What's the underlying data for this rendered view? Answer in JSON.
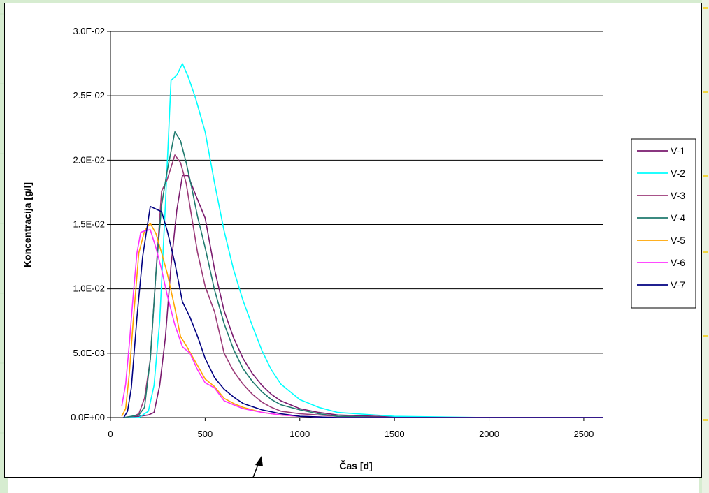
{
  "chart_data": {
    "type": "line",
    "title": "",
    "xlabel": "Čas [d]",
    "ylabel": "Koncentracija [g/l]",
    "xlim": [
      0,
      2600
    ],
    "ylim": [
      0,
      0.03
    ],
    "x_ticks": [
      0,
      500,
      1000,
      1500,
      2000,
      2500
    ],
    "x_tick_labels": [
      "0",
      "500",
      "1000",
      "1500",
      "2000",
      "2500"
    ],
    "y_ticks": [
      0,
      0.005,
      0.01,
      0.015,
      0.02,
      0.025,
      0.03
    ],
    "y_tick_labels": [
      "0.0E+00",
      "5.0E-03",
      "1.0E-02",
      "1.5E-02",
      "2.0E-02",
      "2.5E-02",
      "3.0E-02"
    ],
    "grid": "horizontal",
    "legend_position": "right",
    "series": [
      {
        "name": "V-1",
        "color": "#7a1a6e",
        "x": [
          70,
          150,
          200,
          230,
          260,
          290,
          320,
          350,
          380,
          410,
          450,
          500,
          550,
          600,
          650,
          700,
          750,
          800,
          850,
          900,
          1000,
          1100,
          1200,
          1400,
          1600,
          2000,
          2600
        ],
        "y": [
          0,
          0.0001,
          0.0002,
          0.0004,
          0.0025,
          0.0062,
          0.0118,
          0.0161,
          0.0188,
          0.0188,
          0.0173,
          0.0155,
          0.0115,
          0.0083,
          0.0062,
          0.0046,
          0.0034,
          0.0025,
          0.0018,
          0.0013,
          0.0007,
          0.0004,
          0.0002,
          0.0001,
          0,
          0,
          0
        ]
      },
      {
        "name": "V-2",
        "color": "#00ffff",
        "x": [
          70,
          150,
          200,
          230,
          260,
          290,
          320,
          350,
          380,
          410,
          450,
          500,
          550,
          600,
          650,
          700,
          750,
          800,
          850,
          900,
          1000,
          1100,
          1200,
          1300,
          1500,
          2000,
          2600
        ],
        "y": [
          0,
          0,
          0.0005,
          0.0025,
          0.0075,
          0.0165,
          0.0262,
          0.0266,
          0.0275,
          0.0265,
          0.0248,
          0.0222,
          0.0182,
          0.0145,
          0.0115,
          0.0091,
          0.0071,
          0.0052,
          0.0037,
          0.0026,
          0.0014,
          0.0008,
          0.0004,
          0.0003,
          0.0001,
          0,
          0
        ]
      },
      {
        "name": "V-3",
        "color": "#9b3a78",
        "x": [
          70,
          120,
          150,
          180,
          210,
          240,
          270,
          300,
          340,
          370,
          400,
          430,
          460,
          500,
          550,
          600,
          650,
          700,
          750,
          800,
          850,
          900,
          1000,
          1100,
          1200,
          1500,
          2600
        ],
        "y": [
          0,
          0.0001,
          0.0003,
          0.0015,
          0.0045,
          0.0112,
          0.0176,
          0.0185,
          0.0204,
          0.0198,
          0.0182,
          0.0155,
          0.0128,
          0.0102,
          0.0082,
          0.005,
          0.0036,
          0.0026,
          0.0018,
          0.0012,
          0.0008,
          0.0005,
          0.0003,
          0.0002,
          0.0001,
          0,
          0
        ]
      },
      {
        "name": "V-4",
        "color": "#1f7a6e",
        "x": [
          70,
          150,
          180,
          210,
          240,
          270,
          300,
          340,
          370,
          400,
          430,
          460,
          500,
          550,
          600,
          650,
          700,
          750,
          800,
          850,
          900,
          1000,
          1100,
          1200,
          1500,
          2600
        ],
        "y": [
          0,
          0.0002,
          0.0008,
          0.0045,
          0.0112,
          0.0165,
          0.0192,
          0.0222,
          0.0215,
          0.0198,
          0.0178,
          0.0156,
          0.0132,
          0.0099,
          0.0073,
          0.0053,
          0.0038,
          0.0028,
          0.002,
          0.0014,
          0.001,
          0.0006,
          0.0003,
          0.0001,
          0,
          0
        ]
      },
      {
        "name": "V-5",
        "color": "#ffa500",
        "x": [
          60,
          80,
          100,
          120,
          150,
          180,
          210,
          240,
          270,
          300,
          340,
          370,
          400,
          450,
          500,
          550,
          600,
          650,
          700,
          750,
          800,
          900,
          1000,
          1200,
          1500,
          2600
        ],
        "y": [
          0.0001,
          0.0007,
          0.0035,
          0.0075,
          0.0128,
          0.0145,
          0.0151,
          0.0143,
          0.0128,
          0.0112,
          0.0085,
          0.0063,
          0.0056,
          0.0043,
          0.003,
          0.0024,
          0.0015,
          0.0011,
          0.0008,
          0.0006,
          0.0004,
          0.0002,
          0.0001,
          0,
          0,
          0
        ]
      },
      {
        "name": "V-6",
        "color": "#ff30ff",
        "x": [
          60,
          80,
          100,
          120,
          140,
          160,
          180,
          210,
          240,
          270,
          300,
          340,
          380,
          420,
          460,
          500,
          550,
          600,
          650,
          700,
          800,
          900,
          1000,
          1200,
          1500,
          2600
        ],
        "y": [
          0.0009,
          0.0026,
          0.0058,
          0.0095,
          0.0128,
          0.0144,
          0.0145,
          0.0146,
          0.0132,
          0.0115,
          0.0095,
          0.0072,
          0.0055,
          0.005,
          0.0037,
          0.0027,
          0.0023,
          0.0013,
          0.001,
          0.0007,
          0.0004,
          0.0002,
          0.0001,
          0,
          0,
          0
        ]
      },
      {
        "name": "V-7",
        "color": "#000080",
        "x": [
          70,
          90,
          110,
          140,
          170,
          210,
          240,
          270,
          300,
          340,
          380,
          420,
          460,
          500,
          550,
          600,
          650,
          700,
          800,
          900,
          1000,
          1200,
          1500,
          2600
        ],
        "y": [
          0,
          0.0005,
          0.0023,
          0.0078,
          0.0125,
          0.0164,
          0.0162,
          0.016,
          0.0145,
          0.012,
          0.009,
          0.0078,
          0.0063,
          0.0046,
          0.0031,
          0.0022,
          0.0016,
          0.0011,
          0.0006,
          0.0003,
          0.0001,
          0,
          0,
          0
        ]
      }
    ]
  }
}
